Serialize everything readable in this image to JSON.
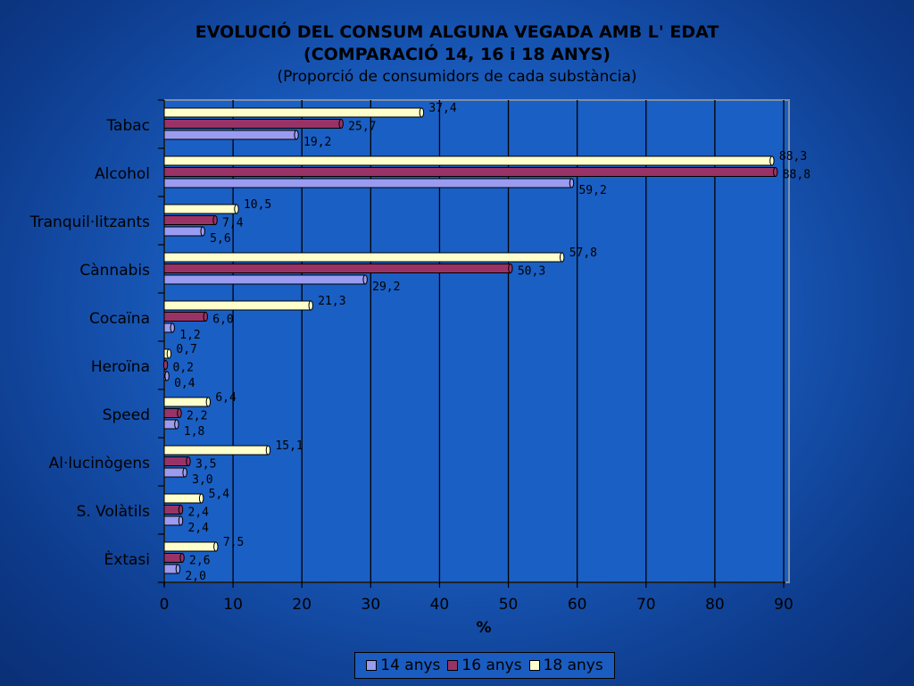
{
  "title": {
    "line1": "EVOLUCIÓ DEL CONSUM ALGUNA VEGADA AMB L' EDAT",
    "line2": "(COMPARACIÓ 14, 16 i 18 ANYS)",
    "subtitle": "(Proporció de consumidors de cada substància)"
  },
  "chart_data": {
    "type": "bar",
    "orientation": "horizontal",
    "title": "EVOLUCIÓ DEL CONSUM ALGUNA VEGADA AMB L' EDAT (COMPARACIÓ 14, 16 i 18 ANYS)",
    "subtitle": "(Proporció de consumidors de cada substància)",
    "xlabel": "%",
    "ylabel": "",
    "xlim": [
      0,
      90
    ],
    "xticks": [
      "0",
      "10",
      "20",
      "30",
      "40",
      "50",
      "60",
      "70",
      "80",
      "90"
    ],
    "grid": true,
    "legend_position": "bottom",
    "categories": [
      "Tabac",
      "Alcohol",
      "Tranquil·litzants",
      "Cànnabis",
      "Cocaïna",
      "Heroïna",
      "Speed",
      "Al·lucinògens",
      "S. Volàtils",
      "Èxtasi"
    ],
    "series": [
      {
        "name": "14 anys",
        "color": "#9b9bf0",
        "values": [
          19.2,
          59.2,
          5.6,
          29.2,
          1.2,
          0.4,
          1.8,
          3.0,
          2.4,
          2.0
        ],
        "labels": [
          "19,2",
          "59,2",
          "5,6",
          "29,2",
          "1,2",
          "0,4",
          "1,8",
          "3,0",
          "2,4",
          "2,0"
        ]
      },
      {
        "name": "16 anys",
        "color": "#993366",
        "values": [
          25.7,
          88.8,
          7.4,
          50.3,
          6.0,
          0.2,
          2.2,
          3.5,
          2.4,
          2.6
        ],
        "labels": [
          "25,7",
          "88,8",
          "7,4",
          "50,3",
          "6,0",
          "0,2",
          "2,2",
          "3,5",
          "2,4",
          "2,6"
        ]
      },
      {
        "name": "18 anys",
        "color": "#ffffcc",
        "values": [
          37.4,
          88.3,
          10.5,
          57.8,
          21.3,
          0.7,
          6.4,
          15.1,
          5.4,
          7.5
        ],
        "labels": [
          "37,4",
          "88,3",
          "10,5",
          "57,8",
          "21,3",
          "0,7",
          "6,4",
          "15,1",
          "5,4",
          "7,5"
        ]
      }
    ]
  }
}
